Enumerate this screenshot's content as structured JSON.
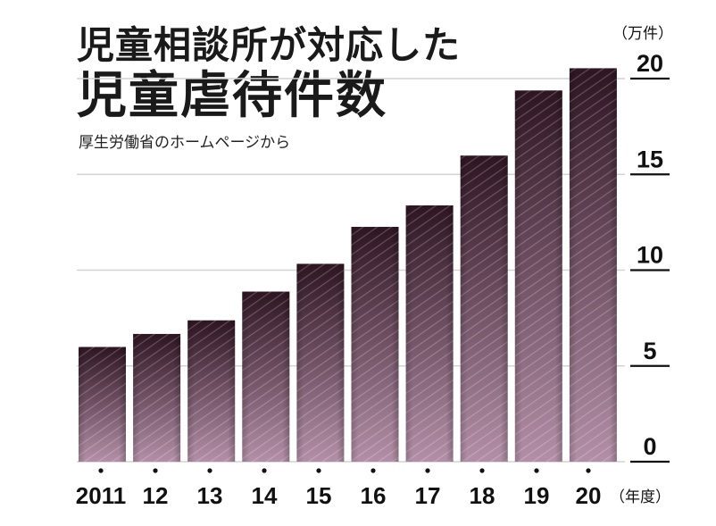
{
  "chart_data": {
    "type": "bar",
    "title": "児童相談所が対応した",
    "title_line2": "児童虐待件数",
    "subtitle": "厚生労働省のホームページから",
    "categories": [
      "2011",
      "12",
      "13",
      "14",
      "15",
      "16",
      "17",
      "18",
      "19",
      "20"
    ],
    "values": [
      5.99,
      6.67,
      7.38,
      8.88,
      10.33,
      12.26,
      13.38,
      15.98,
      19.38,
      20.54
    ],
    "ylim": [
      0,
      20
    ],
    "yticks": [
      "0",
      "5",
      "10",
      "15",
      "20"
    ],
    "ylabel": "（万件）",
    "xlabel": "（年度）",
    "bar_color_top": "#2e1522",
    "bar_color_bottom": "#b38fa7",
    "grid": true
  }
}
